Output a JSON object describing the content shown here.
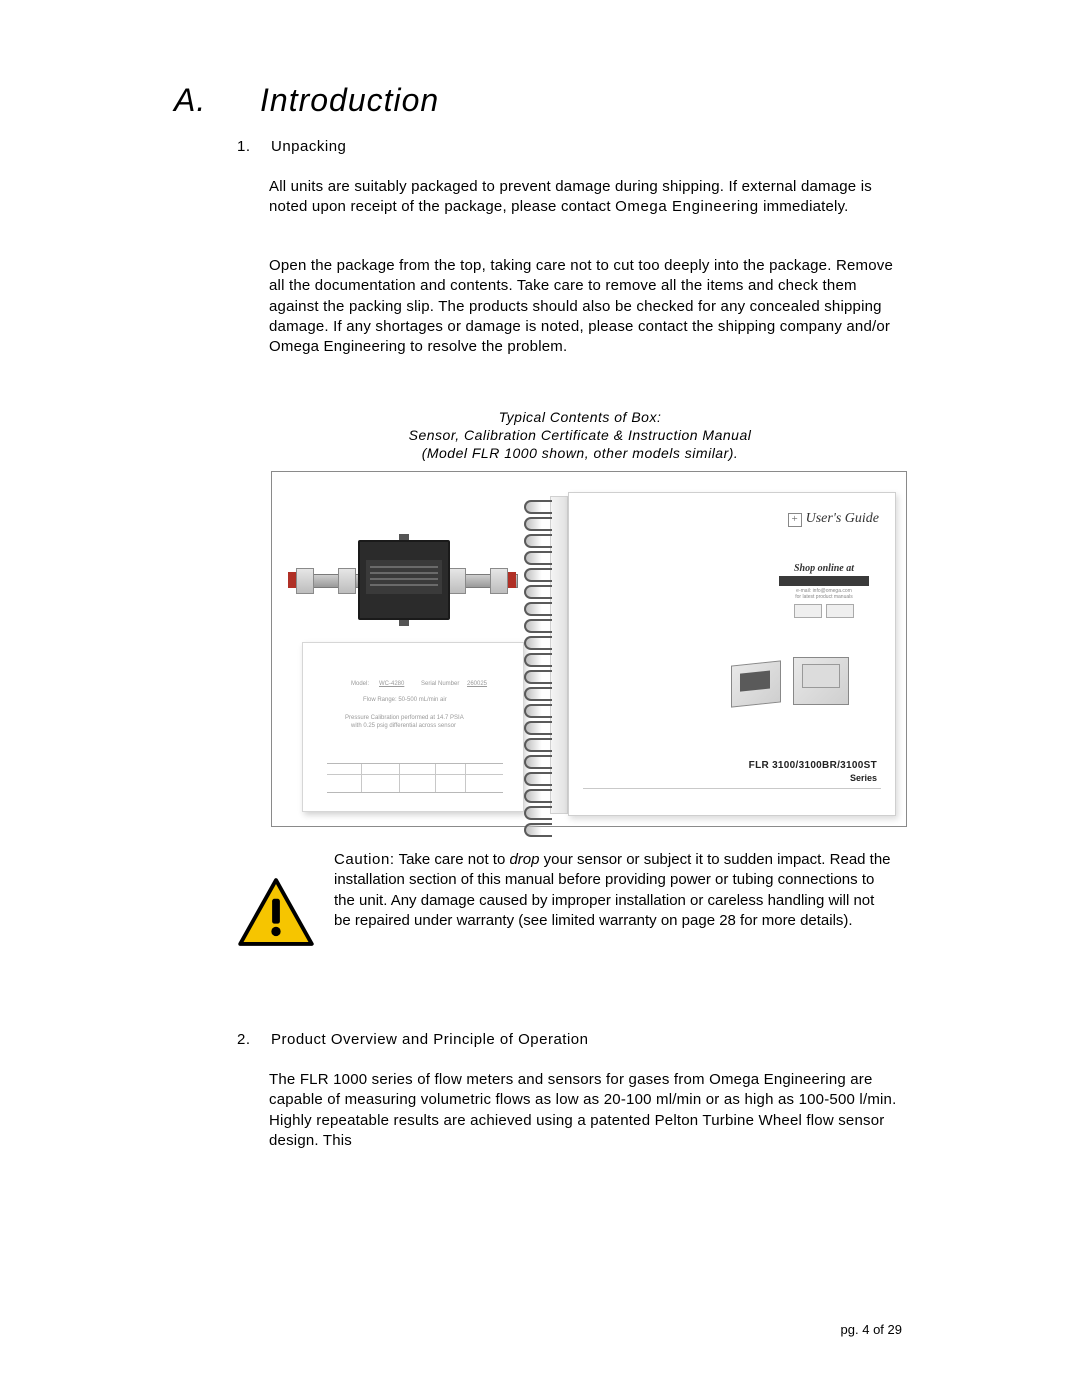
{
  "heading": {
    "letter": "A.",
    "title": "Introduction"
  },
  "sec1": {
    "num": "1.",
    "title": "Unpacking",
    "p1a": "All units are suitably packaged to prevent damage during shipping.  If external damage is noted upon receipt of the package, please contact ",
    "company": "Omega Engineering",
    "p1b": " immediately.",
    "p2": "Open the package from the top, taking care not to cut too deeply into the package.  Remove all the documentation and contents. Take care to remove all the items and check them against the packing slip. The products should also be checked for any concealed shipping damage.  If any shortages or damage is noted, please contact the shipping company and/or Omega Engineering to resolve the problem."
  },
  "caption": {
    "l1": "Typical Contents of Box:",
    "l2": "Sensor, Calibration Certificate & Instruction Manual",
    "l3": "(Model  FLR 1000 shown, other models similar)."
  },
  "figure": {
    "guide_title": "User's Guide",
    "shop_text": "Shop online at",
    "series": "FLR 3100/3100BR/3100ST",
    "series_sub": "Series",
    "cert_model_label": "Model:",
    "cert_model": "WC-4280",
    "cert_serial_label": "Serial Number",
    "cert_serial": "260025",
    "cert_range": "Flow Range:  50-500 mL/min air"
  },
  "caution": {
    "lead": "Caution:",
    "t1": " Take care not to ",
    "drop": "drop",
    "t2": " your sensor or subject it to sudden impact. Read the installation section of this manual before providing power or tubing connections to the unit. Any damage caused by improper installation or careless handling will not be repaired under warranty (see limited warranty on page 28 for more details)."
  },
  "sec2": {
    "num": "2.",
    "title": "Product Overview and Principle of Operation",
    "p": "The FLR 1000 series of flow meters and sensors for gases from Omega Engineering are capable of measuring volumetric flows as low as 20-100 ml/min or as high as 100-500 l/min.  Highly repeatable results are achieved using a patented Pelton Turbine Wheel flow sensor design.  This"
  },
  "footer": {
    "pg": "pg. 4 of 29"
  },
  "colors": {
    "warn_fill": "#f6c500",
    "warn_stroke": "#000000"
  }
}
